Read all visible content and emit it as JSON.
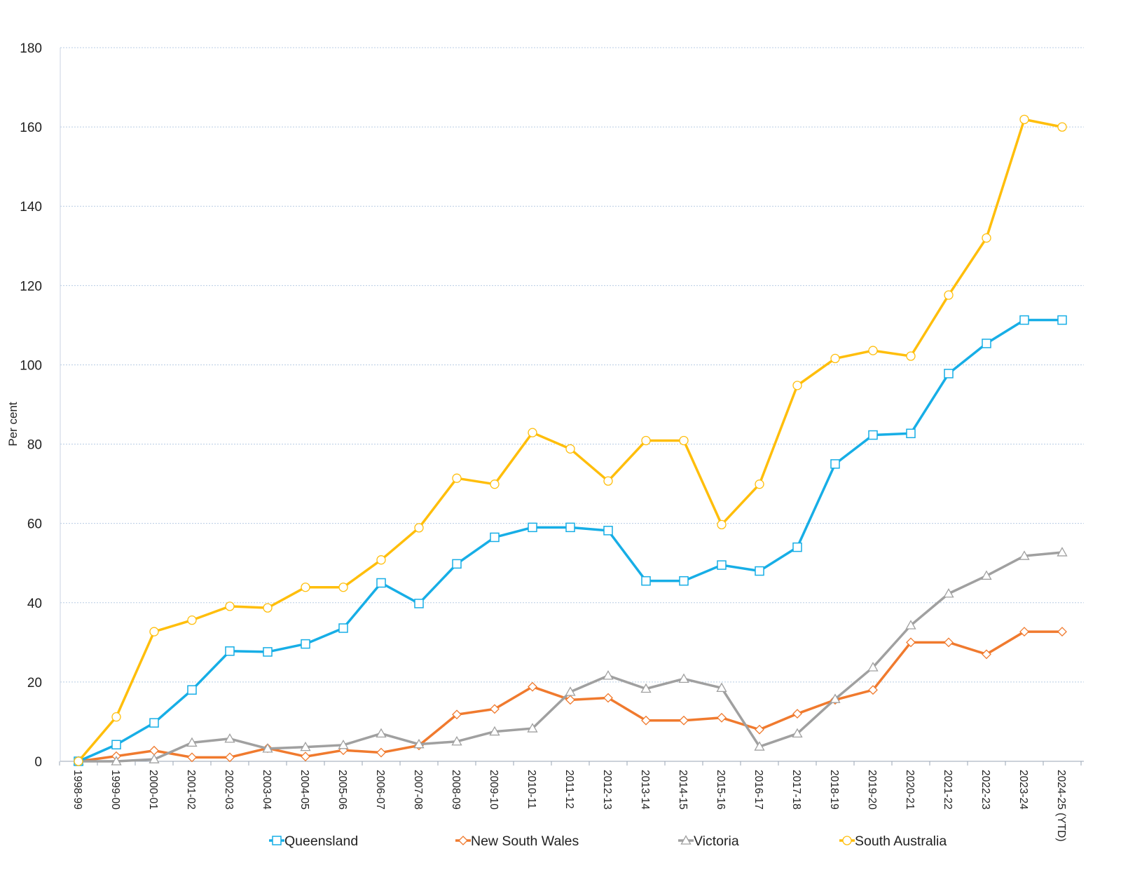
{
  "chart_data": {
    "type": "line",
    "ylabel": "Per cent",
    "xlabel": "",
    "ylim": [
      0,
      180
    ],
    "yticks": [
      "0",
      "20",
      "40",
      "60",
      "80",
      "100",
      "120",
      "140",
      "160",
      "180"
    ],
    "grid": "horizontal dotted",
    "legend_position": "bottom",
    "categories": [
      "1998-99",
      "1999-00",
      "2000-01",
      "2001-02",
      "2002-03",
      "2003-04",
      "2004-05",
      "2005-06",
      "2006-07",
      "2007-08",
      "2008-09",
      "2009-10",
      "2010-11",
      "2011-12",
      "2012-13",
      "2013-14",
      "2014-15",
      "2015-16",
      "2016-17",
      "2017-18",
      "2018-19",
      "2019-20",
      "2020-21",
      "2021-22",
      "2022-23",
      "2023-24",
      "2024-25 (YTD)"
    ],
    "series": [
      {
        "name": "Queensland",
        "color": "#17AEE6",
        "marker": "square",
        "values": [
          0,
          4.2,
          9.7,
          18,
          27.8,
          27.6,
          29.6,
          33.6,
          45,
          39.8,
          49.8,
          56.5,
          59,
          59,
          58.2,
          45.5,
          45.5,
          49.5,
          48,
          54,
          75,
          82.3,
          82.7,
          97.8,
          105.4,
          111.3,
          111.3
        ]
      },
      {
        "name": "New South Wales",
        "color": "#F07A2E",
        "marker": "diamond",
        "values": [
          0,
          1.3,
          2.7,
          1,
          1,
          3.3,
          1.2,
          2.8,
          2.2,
          4,
          11.8,
          13.2,
          18.8,
          15.5,
          16,
          10.3,
          10.3,
          11,
          8,
          12,
          15.5,
          18,
          30,
          30,
          27,
          32.7,
          32.7
        ]
      },
      {
        "name": "Victoria",
        "color": "#A0A0A0",
        "marker": "triangle",
        "values": [
          0,
          0,
          0.5,
          4.7,
          5.7,
          3.2,
          3.6,
          4.1,
          7,
          4.3,
          5,
          7.5,
          8.3,
          17.5,
          21.6,
          18.3,
          20.8,
          18.5,
          3.7,
          7,
          15.7,
          23.7,
          34.3,
          42.3,
          46.8,
          51.8,
          52.7
        ]
      },
      {
        "name": "South Australia",
        "color": "#FFBE0B",
        "marker": "circle",
        "values": [
          0,
          11.2,
          32.7,
          35.6,
          39.1,
          38.7,
          43.9,
          43.9,
          50.8,
          58.9,
          71.4,
          69.9,
          82.9,
          78.8,
          70.7,
          80.9,
          80.9,
          59.7,
          69.9,
          94.8,
          101.6,
          103.6,
          102.2,
          117.6,
          132,
          161.9,
          160
        ]
      }
    ]
  }
}
